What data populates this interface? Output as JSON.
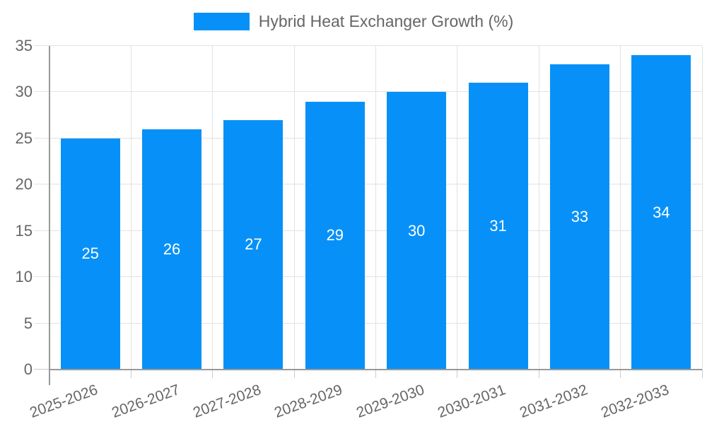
{
  "chart_data": {
    "type": "bar",
    "title": "",
    "legend": {
      "label": "Hybrid Heat Exchanger Growth (%)",
      "position": "top"
    },
    "categories": [
      "2025-2026",
      "2026-2027",
      "2027-2028",
      "2028-2029",
      "2029-2030",
      "2030-2031",
      "2031-2032",
      "2032-2033"
    ],
    "values": [
      25,
      26,
      27,
      29,
      30,
      31,
      33,
      34
    ],
    "xlabel": "",
    "ylabel": "",
    "ylim": [
      0,
      35
    ],
    "yticks": [
      0,
      5,
      10,
      15,
      20,
      25,
      30,
      35
    ],
    "grid": true,
    "x_label_rotation_deg": -20,
    "colors": {
      "bar": "#0791F8",
      "bar_value_text": "#FFFFFF",
      "axis_text": "#666666",
      "legend_text": "#666666",
      "grid": "#E2E2E2",
      "tick": "#CCCCCC",
      "axis_line": "#999999",
      "background": "#FFFFFF"
    }
  }
}
